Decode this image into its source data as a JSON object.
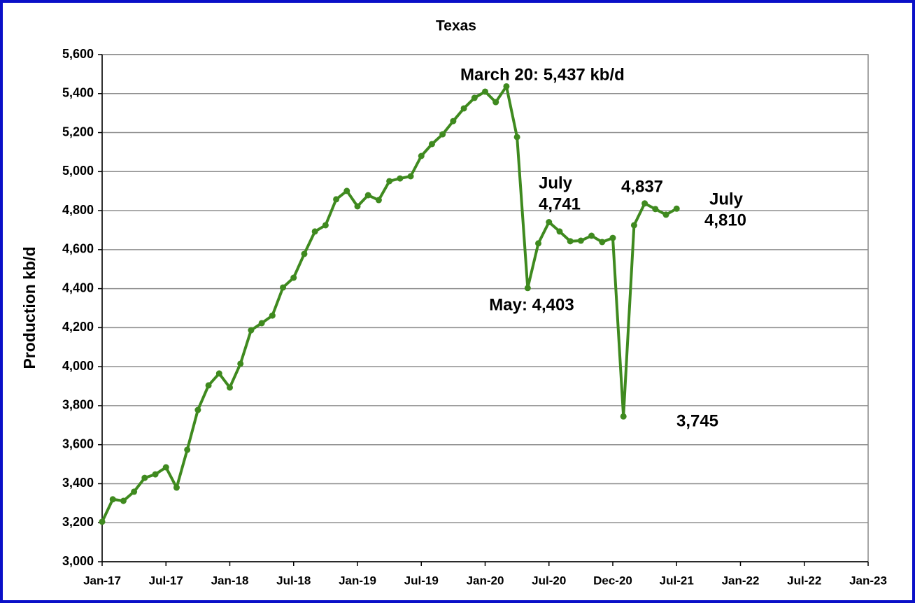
{
  "chart_data": {
    "type": "line",
    "title": "Texas",
    "y_label": "Production kb/d",
    "categories": [
      "Jan-17",
      null,
      null,
      null,
      null,
      null,
      "Jul-17",
      null,
      null,
      null,
      null,
      null,
      "Jan-18",
      null,
      null,
      null,
      null,
      null,
      "Jul-18",
      null,
      null,
      null,
      null,
      null,
      "Jan-19",
      null,
      null,
      null,
      null,
      null,
      "Jul-19",
      null,
      null,
      null,
      null,
      null,
      "Jan-20",
      null,
      null,
      null,
      null,
      null,
      "Jul-20",
      null,
      null,
      null,
      null,
      null,
      "Dec-20",
      null,
      null,
      null,
      null,
      null,
      "Jul-21",
      null,
      null,
      null,
      null,
      null,
      "Jan-22",
      null,
      null,
      null,
      null,
      null,
      "Jul-22",
      null,
      null,
      null,
      null,
      null,
      "Jan-23"
    ],
    "series": [
      {
        "name": "Texas",
        "color": "#3f8a1f",
        "values": [
          3205,
          3320,
          3312,
          3359,
          3430,
          3448,
          3484,
          3380,
          3574,
          3778,
          3904,
          3965,
          3893,
          4015,
          4187,
          4223,
          4262,
          4406,
          4456,
          4578,
          4693,
          4725,
          4858,
          4901,
          4822,
          4879,
          4854,
          4951,
          4965,
          4976,
          5080,
          5141,
          5191,
          5259,
          5324,
          5378,
          5410,
          5356,
          5437,
          5177,
          4403,
          4632,
          4741,
          4693,
          4643,
          4646,
          4671,
          4639,
          4660,
          3745,
          4725,
          4837,
          4808,
          4779,
          4810,
          null,
          null,
          null,
          null,
          null,
          null,
          null,
          null,
          null,
          null,
          null,
          null,
          null,
          null,
          null,
          null,
          null,
          null
        ]
      }
    ],
    "ylim": [
      3000,
      5600
    ],
    "yticks": [
      {
        "value": 3000,
        "label": "3,000"
      },
      {
        "value": 3200,
        "label": "3,200"
      },
      {
        "value": 3400,
        "label": "3,400"
      },
      {
        "value": 3600,
        "label": "3,600"
      },
      {
        "value": 3800,
        "label": "3,800"
      },
      {
        "value": 4000,
        "label": "4,000"
      },
      {
        "value": 4200,
        "label": "4,200"
      },
      {
        "value": 4400,
        "label": "4,400"
      },
      {
        "value": 4600,
        "label": "4,600"
      },
      {
        "value": 4800,
        "label": "4,800"
      },
      {
        "value": 5000,
        "label": "5,000"
      },
      {
        "value": 5200,
        "label": "5,200"
      },
      {
        "value": 5400,
        "label": "5,400"
      },
      {
        "value": 5600,
        "label": "5,600"
      }
    ],
    "grid": true,
    "annotations": [
      [
        "March 20: 5,437 kb/d"
      ],
      [
        "July",
        "4,741"
      ],
      [
        "May: 4,403"
      ],
      [
        "4,837"
      ],
      [
        "3,745"
      ],
      [
        "July",
        "4,810"
      ]
    ]
  }
}
